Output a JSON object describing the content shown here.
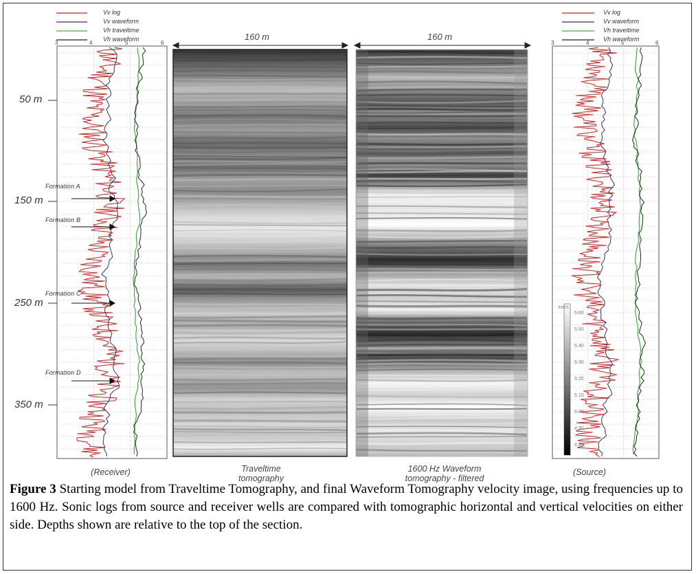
{
  "legend_left": [
    "Vv log",
    "Vv waveform",
    "Vh traveltime",
    "Vh waveform"
  ],
  "legend_right": [
    "Vv log",
    "Vv waveform",
    "Vh traveltime",
    "Vh waveform"
  ],
  "axis_ticks": [
    "3",
    "4",
    "5",
    "6"
  ],
  "depths": [
    "50 m",
    "150 m",
    "250 m",
    "350 m"
  ],
  "formations": [
    "Formation A",
    "Formation B",
    "Formation C",
    "Formation D"
  ],
  "width_labels": [
    "160 m",
    "160 m"
  ],
  "colorbar_labels": [
    "km/s",
    "5.60",
    "5.50",
    "5.40",
    "5.30",
    "5.20",
    "5.10",
    "5.00",
    "4.90",
    "4.80"
  ],
  "panel_labels": {
    "receiver": "(Receiver)",
    "traveltime": "Traveltime tomography",
    "waveform": "1600 Hz Waveform tomography - filtered",
    "source": "(Source)"
  },
  "caption": {
    "label": "Figure 3",
    "text": " Starting model from Traveltime Tomography, and final Waveform Tomography velocity image, using frequencies up to 1600 Hz. Sonic logs from source and receiver wells are compared with tomographic horizontal and vertical velocities on either side. Depths shown are relative to the top of the section."
  },
  "colors": {
    "vv_log": "#cc2222",
    "vv_waveform": "#333366",
    "vh_traveltime": "#44aa44",
    "vh_waveform": "#222222"
  }
}
